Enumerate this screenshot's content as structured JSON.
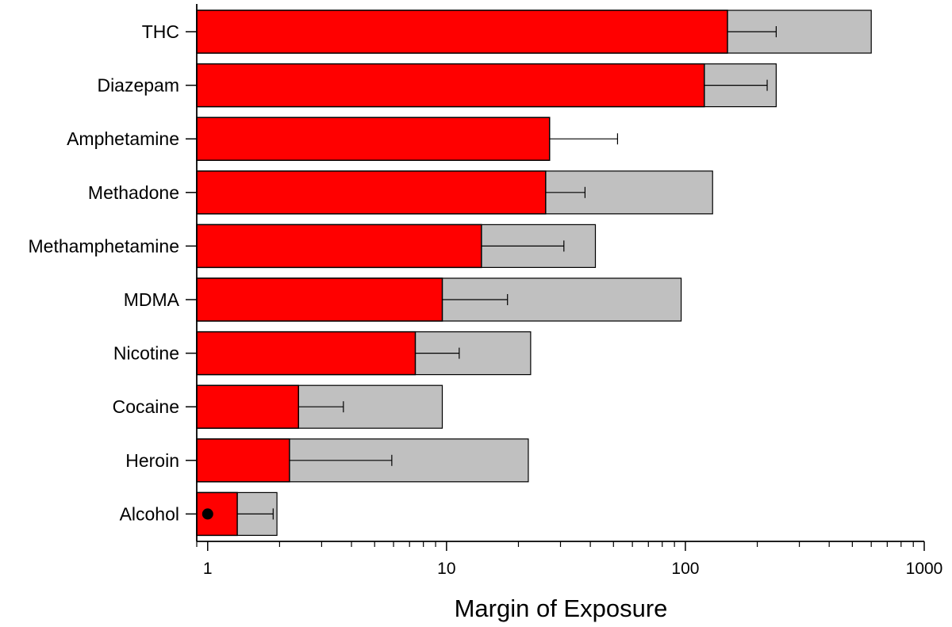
{
  "chart_data": {
    "type": "bar",
    "orientation": "horizontal",
    "xlabel": "Margin of Exposure",
    "ylabel": "",
    "title": "",
    "x_scale": "log",
    "xlim": [
      0.9,
      1000
    ],
    "x_ticks": [
      1,
      10,
      100,
      1000
    ],
    "x_tick_labels": [
      "1",
      "10",
      "100",
      "1000"
    ],
    "categories": [
      "THC",
      "Diazepam",
      "Amphetamine",
      "Methadone",
      "Methamphetamine",
      "MDMA",
      "Nicotine",
      "Cocaine",
      "Heroin",
      "Alcohol"
    ],
    "series": [
      {
        "color": "#ff0000",
        "values": [
          150,
          120,
          27,
          26,
          14,
          9.6,
          7.4,
          2.4,
          2.2,
          1.33
        ],
        "error_upper": [
          240,
          220,
          52,
          38,
          31,
          18,
          11.3,
          3.7,
          5.9,
          1.88
        ]
      },
      {
        "color": "#c0c0c0",
        "values": [
          600,
          240,
          27,
          130,
          42,
          96,
          22.5,
          9.6,
          22,
          1.95
        ]
      }
    ],
    "markers": [
      {
        "category": "Alcohol",
        "x": 1.0,
        "shape": "circle",
        "color": "#000000"
      }
    ],
    "grid": false,
    "legend": "none"
  }
}
